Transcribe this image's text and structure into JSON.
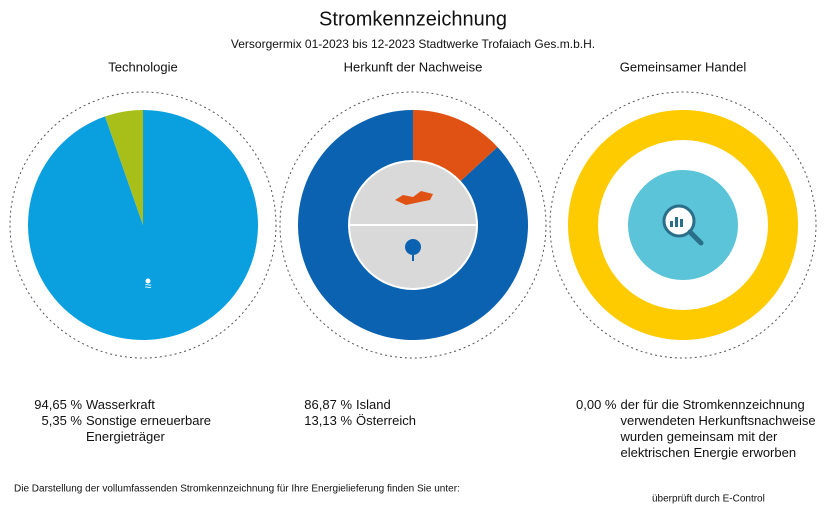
{
  "title": "Stromkennzeichnung",
  "subtitle": "Versorgermix 01-2023 bis 12-2023 Stadtwerke Trofaiach Ges.m.b.H.",
  "footer": "Die Darstellung der vollumfassenden Stromkennzeichnung für Ihre Energielieferung finden Sie unter:",
  "verified": "überprüft durch E-Control",
  "chart_data": [
    {
      "type": "pie",
      "title": "Technologie",
      "clockwise": true,
      "categories": [
        "Wasserkraft",
        "Sonstige erneuerbare Energieträger"
      ],
      "values": [
        94.65,
        5.35
      ],
      "value_labels": [
        "94,65 %",
        "5,35 %"
      ],
      "colors": [
        "#0aa0e0",
        "#a8bf1a"
      ]
    },
    {
      "type": "donut",
      "title": "Herkunft der Nachweise",
      "clockwise": false,
      "categories": [
        "Island",
        "Österreich"
      ],
      "values": [
        86.87,
        13.13
      ],
      "value_labels": [
        "86,87 %",
        "13,13 %"
      ],
      "colors": [
        "#0b62b0",
        "#e05214"
      ]
    },
    {
      "type": "ring",
      "title": "Gemeinsamer Handel",
      "clockwise": true,
      "categories": [
        "der für die Stromkennzeichnung verwendeten Herkunftsnachweise wurden gemeinsam mit der elektrischen Energie erworben"
      ],
      "values": [
        0
      ],
      "value_labels": [
        "0,00 %"
      ],
      "colors": [
        "#5bc4d8"
      ],
      "ring_color": "#fecb00"
    }
  ]
}
